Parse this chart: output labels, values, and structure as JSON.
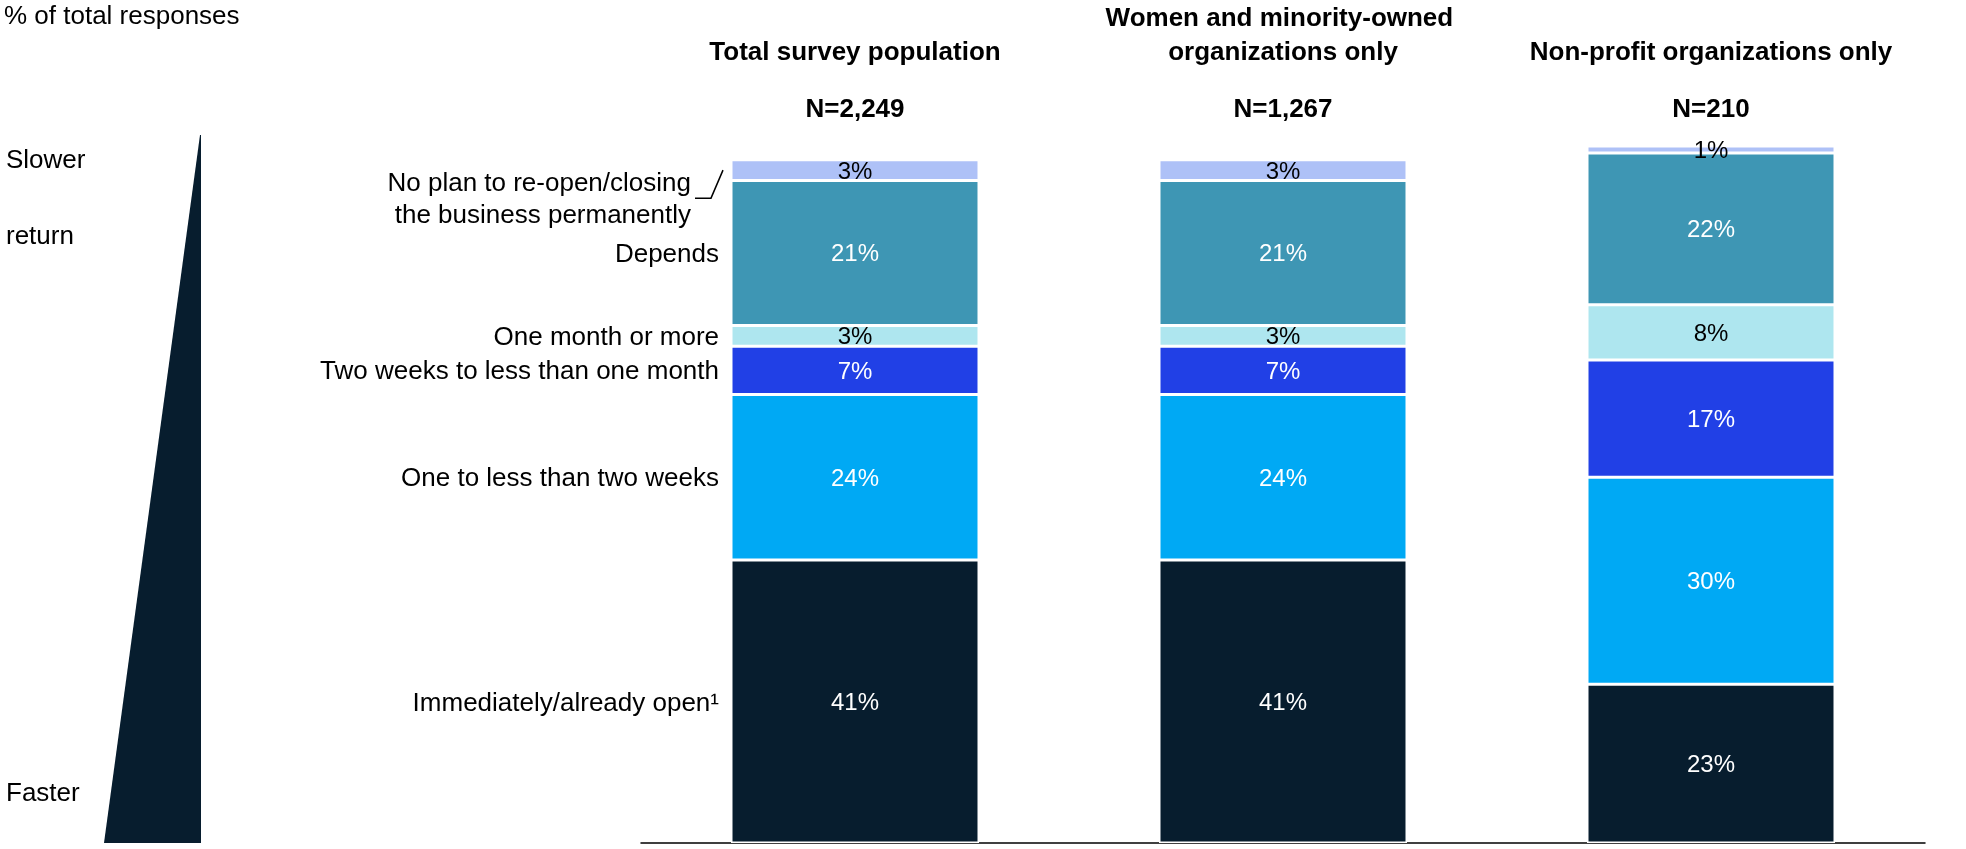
{
  "chart_data": {
    "type": "bar",
    "stacked": true,
    "categories": [
      "Total survey population",
      "Women and minority-owned organizations only",
      "Non-profit organizations only"
    ],
    "series": [
      {
        "name": "Immediately/already open¹",
        "color": "#071d2e",
        "values": [
          41,
          41,
          23
        ],
        "value_labels": [
          "41%",
          "41%",
          "23%"
        ]
      },
      {
        "name": "One to less than two weeks",
        "color": "#00a9f4",
        "values": [
          24,
          24,
          30
        ],
        "value_labels": [
          "24%",
          "24%",
          "30%"
        ]
      },
      {
        "name": "Two weeks to less than one month",
        "color": "#2140e6",
        "values": [
          7,
          7,
          17
        ],
        "value_labels": [
          "7%",
          "7%",
          "17%"
        ]
      },
      {
        "name": "One month or more",
        "color": "#aee6ef",
        "values": [
          3,
          3,
          8
        ],
        "value_labels": [
          "3%",
          "3%",
          "8%"
        ]
      },
      {
        "name": "Depends",
        "color": "#3e96b4",
        "values": [
          21,
          21,
          22
        ],
        "value_labels": [
          "21%",
          "21%",
          "22%"
        ]
      },
      {
        "name": "No plan to re-open/closing the business permanently",
        "color": "#aec1f7",
        "values": [
          3,
          3,
          1
        ],
        "value_labels": [
          "3%",
          "3%",
          "1%"
        ]
      }
    ],
    "annotations": [
      "% of total responses",
      "N=2,249",
      "N=1,267",
      "N=210",
      "Slower return",
      "Faster return"
    ],
    "legend": "left"
  }
}
